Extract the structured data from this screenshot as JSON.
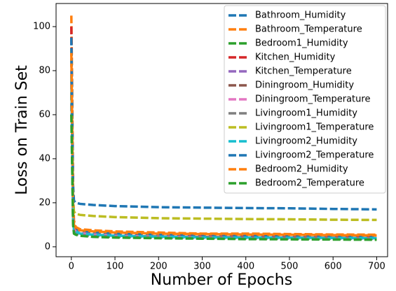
{
  "chart_data": {
    "type": "line",
    "xlabel": "Number of Epochs",
    "ylabel": "Loss on Train Set",
    "x": [
      0,
      2,
      4,
      6,
      10,
      20,
      50,
      100,
      200,
      300,
      400,
      500,
      600,
      700
    ],
    "xlim": [
      -35,
      725
    ],
    "ylim": [
      -4.5,
      110.5
    ],
    "xticks": [
      0,
      100,
      200,
      300,
      400,
      500,
      600,
      700
    ],
    "yticks": [
      0,
      20,
      40,
      60,
      80,
      100
    ],
    "legend": "upper right",
    "line_style": "dashed",
    "series": [
      {
        "name": "Bathroom_Humidity",
        "color": "#1f77b4",
        "values": [
          95,
          60,
          20,
          10,
          8,
          7,
          6.5,
          6,
          5.5,
          5,
          5,
          4.8,
          4.8,
          4.6
        ]
      },
      {
        "name": "Bathroom_Temperature",
        "color": "#ff7f0e",
        "values": [
          105,
          70,
          25,
          12,
          9,
          8,
          7.5,
          7,
          6.5,
          6,
          6,
          5.8,
          5.6,
          5.5
        ]
      },
      {
        "name": "Bedroom1_Humidity",
        "color": "#2ca02c",
        "values": [
          70,
          40,
          12,
          7,
          6,
          5.5,
          5,
          4.5,
          4.2,
          4,
          3.8,
          3.7,
          3.6,
          3.5
        ]
      },
      {
        "name": "Kitchen_Humidity",
        "color": "#d62728",
        "values": [
          100,
          55,
          15,
          9,
          7,
          6,
          5.5,
          5,
          4.7,
          4.5,
          4.3,
          4.2,
          4.1,
          4
        ]
      },
      {
        "name": "Kitchen_Temperature",
        "color": "#9467bd",
        "values": [
          85,
          50,
          14,
          8,
          7,
          6,
          5.5,
          5,
          4.5,
          4.2,
          4,
          3.9,
          3.8,
          3.7
        ]
      },
      {
        "name": "Diningroom_Humidity",
        "color": "#8c564b",
        "values": [
          75,
          45,
          13,
          8,
          6.5,
          5.8,
          5.3,
          4.8,
          4.4,
          4.1,
          4,
          3.9,
          3.8,
          3.7
        ]
      },
      {
        "name": "Diningroom_Temperature",
        "color": "#e377c2",
        "values": [
          80,
          48,
          14,
          8,
          7,
          6.2,
          5.6,
          5,
          4.6,
          4.3,
          4.1,
          4,
          3.9,
          3.8
        ]
      },
      {
        "name": "Livingroom1_Humidity",
        "color": "#7f7f7f",
        "values": [
          65,
          38,
          12,
          7,
          6,
          5.5,
          5,
          4.6,
          4.3,
          4.1,
          4,
          3.9,
          3.8,
          3.7
        ]
      },
      {
        "name": "Livingroom1_Temperature",
        "color": "#bcbd22",
        "values": [
          90,
          55,
          22,
          16,
          15,
          14.5,
          14,
          13.5,
          13,
          12.8,
          12.6,
          12.5,
          12.3,
          12.2
        ]
      },
      {
        "name": "Livingroom2_Humidity",
        "color": "#17becf",
        "values": [
          78,
          45,
          13,
          8,
          7,
          6,
          5.5,
          5,
          4.6,
          4.3,
          4.2,
          4.1,
          4,
          3.9
        ]
      },
      {
        "name": "Livingroom2_Temperature",
        "color": "#1f77b4",
        "values": [
          95,
          60,
          28,
          21,
          20,
          19.5,
          19,
          18.5,
          18,
          17.8,
          17.6,
          17.5,
          17.2,
          17
        ]
      },
      {
        "name": "Bedroom2_Humidity",
        "color": "#ff7f0e",
        "values": [
          88,
          52,
          16,
          10,
          8.5,
          7.5,
          7,
          6.5,
          6,
          5.8,
          5.6,
          5.5,
          5.3,
          5.2
        ]
      },
      {
        "name": "Bedroom2_Temperature",
        "color": "#2ca02c",
        "values": [
          60,
          35,
          10,
          6,
          5.5,
          5,
          4.5,
          4.2,
          3.9,
          3.7,
          3.5,
          3.4,
          3.3,
          3.2
        ]
      }
    ]
  }
}
